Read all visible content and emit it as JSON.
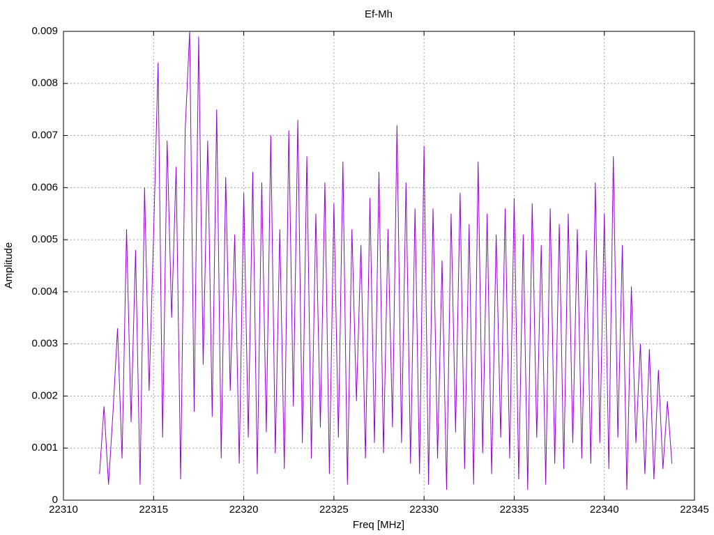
{
  "chart_data": {
    "type": "line",
    "title": "Ef-Mh",
    "x_label": "Freq [MHz]",
    "y_label": "Amplitude",
    "color": "#9400d3",
    "grid": true,
    "xlim": [
      22310,
      22345
    ],
    "xticks": [
      22310,
      22315,
      22320,
      22325,
      22330,
      22335,
      22340,
      22345
    ],
    "ylim": [
      0,
      0.009
    ],
    "yticks": [
      0,
      0.001,
      0.002,
      0.003,
      0.004,
      0.005,
      0.006,
      0.007,
      0.008,
      0.009
    ],
    "x": [
      22312,
      22312.25,
      22312.5,
      22312.75,
      22313,
      22313.25,
      22313.5,
      22313.75,
      22314,
      22314.25,
      22314.5,
      22314.75,
      22315,
      22315.25,
      22315.5,
      22315.75,
      22316,
      22316.25,
      22316.5,
      22316.75,
      22317,
      22317.25,
      22317.5,
      22317.75,
      22318,
      22318.25,
      22318.5,
      22318.75,
      22319,
      22319.25,
      22319.5,
      22319.75,
      22320,
      22320.25,
      22320.5,
      22320.75,
      22321,
      22321.25,
      22321.5,
      22321.75,
      22322,
      22322.25,
      22322.5,
      22322.75,
      22323,
      22323.25,
      22323.5,
      22323.75,
      22324,
      22324.25,
      22324.5,
      22324.75,
      22325,
      22325.25,
      22325.5,
      22325.75,
      22326,
      22326.25,
      22326.5,
      22326.75,
      22327,
      22327.25,
      22327.5,
      22327.75,
      22328,
      22328.25,
      22328.5,
      22328.75,
      22329,
      22329.25,
      22329.5,
      22329.75,
      22330,
      22330.25,
      22330.5,
      22330.75,
      22331,
      22331.25,
      22331.5,
      22331.75,
      22332,
      22332.25,
      22332.5,
      22332.75,
      22333,
      22333.25,
      22333.5,
      22333.75,
      22334,
      22334.25,
      22334.5,
      22334.75,
      22335,
      22335.25,
      22335.5,
      22335.75,
      22336,
      22336.25,
      22336.5,
      22336.75,
      22337,
      22337.25,
      22337.5,
      22337.75,
      22338,
      22338.25,
      22338.5,
      22338.75,
      22339,
      22339.25,
      22339.5,
      22339.75,
      22340,
      22340.25,
      22340.5,
      22340.75,
      22341,
      22341.25,
      22341.5,
      22341.75,
      22342,
      22342.25,
      22342.5,
      22342.75,
      22343,
      22343.25,
      22343.5,
      22343.75
    ],
    "values": [
      0.0005,
      0.0018,
      0.0003,
      0.0017,
      0.0033,
      0.0008,
      0.0052,
      0.0015,
      0.0048,
      0.0003,
      0.006,
      0.0021,
      0.0051,
      0.0084,
      0.0012,
      0.0069,
      0.0035,
      0.0064,
      0.0004,
      0.0071,
      0.009,
      0.0017,
      0.0089,
      0.0026,
      0.0069,
      0.0016,
      0.0075,
      0.0008,
      0.0062,
      0.0021,
      0.0051,
      0.0007,
      0.0059,
      0.0012,
      0.0063,
      0.0005,
      0.0061,
      0.0013,
      0.007,
      0.0009,
      0.0052,
      0.0006,
      0.0071,
      0.0018,
      0.0073,
      0.0011,
      0.0066,
      0.0008,
      0.0055,
      0.0014,
      0.0061,
      0.0005,
      0.0057,
      0.0012,
      0.0065,
      0.0003,
      0.0052,
      0.0019,
      0.0049,
      0.0008,
      0.0058,
      0.0011,
      0.0063,
      0.0009,
      0.0052,
      0.0014,
      0.0072,
      0.0011,
      0.0061,
      0.0007,
      0.0056,
      0.0005,
      0.0068,
      0.0003,
      0.0056,
      0.0008,
      0.0046,
      0.0002,
      0.0055,
      0.0013,
      0.0059,
      0.0006,
      0.0053,
      0.0003,
      0.0065,
      0.0009,
      0.0055,
      0.0005,
      0.0051,
      0.0012,
      0.0056,
      0.0008,
      0.0058,
      0.0004,
      0.0051,
      0.0002,
      0.0057,
      0.0012,
      0.0049,
      0.0003,
      0.0056,
      0.0007,
      0.0053,
      0.0006,
      0.0055,
      0.0011,
      0.0052,
      0.0008,
      0.0048,
      0.0007,
      0.0061,
      0.0011,
      0.0055,
      0.0006,
      0.0066,
      0.0012,
      0.0049,
      0.0002,
      0.0041,
      0.0011,
      0.003,
      0.0005,
      0.0029,
      0.0004,
      0.0025,
      0.0006,
      0.0019,
      0.0007
    ]
  }
}
